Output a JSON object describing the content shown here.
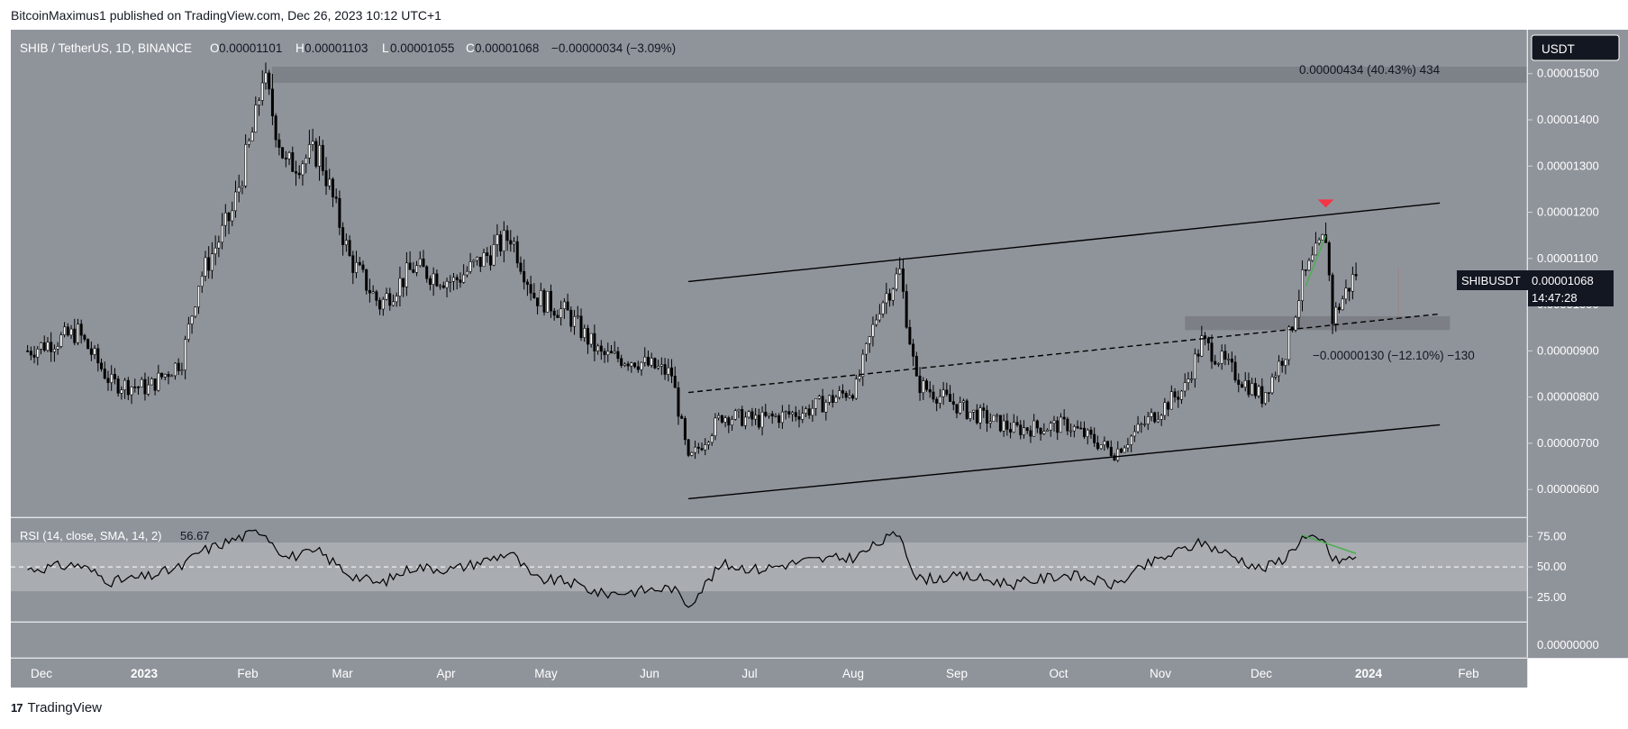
{
  "header": {
    "published": "BitcoinMaximus1 published on TradingView.com, Dec 26, 2023 10:12 UTC+1"
  },
  "footer": {
    "brand": "TradingView"
  },
  "colors": {
    "pane_bg": "#8f949b",
    "rsi_band": "#a9acb1",
    "price_line": "#000000",
    "accent_green": "#4caf50",
    "marker_red": "#f23645",
    "zone": "#6f7378"
  },
  "chart_data": {
    "type": "candlestick",
    "legend": {
      "symbol": "SHIB / TetherUS, 1D, BINANCE",
      "o_label": "O",
      "o": "0.00001101",
      "h_label": "H",
      "h": "0.00001103",
      "l_label": "L",
      "l": "0.00001055",
      "c_label": "C",
      "c": "0.00001068",
      "change": "−0.00000034 (−3.09%)"
    },
    "currency_button": "USDT",
    "price_axis": {
      "ticks": [
        {
          "v": 1.5e-05,
          "label": "0.00001500"
        },
        {
          "v": 1.4e-05,
          "label": "0.00001400"
        },
        {
          "v": 1.3e-05,
          "label": "0.00001300"
        },
        {
          "v": 1.2e-05,
          "label": "0.00001200"
        },
        {
          "v": 1.1e-05,
          "label": "0.00001100"
        },
        {
          "v": 1e-05,
          "label": "0.00001000"
        },
        {
          "v": 9e-06,
          "label": "0.00000900"
        },
        {
          "v": 8e-06,
          "label": "0.00000800"
        },
        {
          "v": 7e-06,
          "label": "0.00000700"
        },
        {
          "v": 6e-06,
          "label": "0.00000600"
        }
      ],
      "range": [
        5.4e-06,
        1.595e-05
      ]
    },
    "time_axis": [
      "Dec",
      "2023",
      "Feb",
      "Mar",
      "Apr",
      "May",
      "Jun",
      "Jul",
      "Aug",
      "Sep",
      "Oct",
      "Nov",
      "Dec",
      "2024",
      "Feb"
    ],
    "last_price": {
      "symbol": "SHIBUSDT",
      "price": "0.00001068",
      "countdown": "14:47:28"
    },
    "candles_close": [
      [
        "2022-11-25",
        9e-06
      ],
      [
        "2022-12-10",
        9.4e-06
      ],
      [
        "2022-12-20",
        8.3e-06
      ],
      [
        "2022-12-31",
        8.2e-06
      ],
      [
        "2023-01-10",
        8.8e-06
      ],
      [
        "2023-01-15",
        1.05e-05
      ],
      [
        "2023-01-25",
        1.2e-05
      ],
      [
        "2023-02-01",
        1.4e-05
      ],
      [
        "2023-02-03",
        1.5e-05
      ],
      [
        "2023-02-10",
        1.3e-05
      ],
      [
        "2023-02-20",
        1.33e-05
      ],
      [
        "2023-03-01",
        1.1e-05
      ],
      [
        "2023-03-10",
        1e-05
      ],
      [
        "2023-03-20",
        1.08e-05
      ],
      [
        "2023-04-01",
        1.05e-05
      ],
      [
        "2023-04-10",
        1.1e-05
      ],
      [
        "2023-04-18",
        1.15e-05
      ],
      [
        "2023-04-25",
        1.02e-05
      ],
      [
        "2023-05-05",
        9.8e-06
      ],
      [
        "2023-05-15",
        8.9e-06
      ],
      [
        "2023-05-25",
        8.8e-06
      ],
      [
        "2023-06-05",
        8.5e-06
      ],
      [
        "2023-06-10",
        6.6e-06
      ],
      [
        "2023-06-20",
        7.6e-06
      ],
      [
        "2023-07-01",
        7.5e-06
      ],
      [
        "2023-07-15",
        7.7e-06
      ],
      [
        "2023-07-30",
        8.2e-06
      ],
      [
        "2023-08-06",
        1e-05
      ],
      [
        "2023-08-12",
        1.07e-05
      ],
      [
        "2023-08-17",
        8.3e-06
      ],
      [
        "2023-09-01",
        7.7e-06
      ],
      [
        "2023-09-15",
        7.3e-06
      ],
      [
        "2023-10-01",
        7.4e-06
      ],
      [
        "2023-10-15",
        6.8e-06
      ],
      [
        "2023-10-25",
        7.5e-06
      ],
      [
        "2023-11-05",
        8.2e-06
      ],
      [
        "2023-11-10",
        9.2e-06
      ],
      [
        "2023-11-20",
        8.5e-06
      ],
      [
        "2023-11-28",
        8e-06
      ],
      [
        "2023-12-05",
        9e-06
      ],
      [
        "2023-12-10",
        1.05e-05
      ],
      [
        "2023-12-17",
        1.15e-05
      ],
      [
        "2023-12-19",
        9.7e-06
      ],
      [
        "2023-12-26",
        1.07e-05
      ]
    ],
    "annotations": {
      "upper_measure": "0.00000434 (40.43%) 434",
      "lower_measure": "−0.00000130 (−12.10%) −130",
      "resistance_zone": [
        1.48e-05,
        1.515e-05
      ],
      "support_zone": [
        9.45e-06,
        9.75e-06
      ],
      "channel_upper": [
        [
          "2023-06-10",
          1.05e-05
        ],
        [
          "2024-01-20",
          1.22e-05
        ]
      ],
      "channel_lower": [
        [
          "2023-06-10",
          5.8e-06
        ],
        [
          "2024-01-20",
          7.4e-06
        ]
      ],
      "channel_mid": [
        [
          "2023-06-10",
          8.1e-06
        ],
        [
          "2024-01-20",
          9.8e-06
        ]
      ]
    },
    "rsi": {
      "legend": "RSI (14, close, SMA, 14, 2)",
      "value": "56.67",
      "ticks": [
        {
          "v": 75,
          "label": "75.00"
        },
        {
          "v": 50,
          "label": "50.00"
        },
        {
          "v": 25,
          "label": "25.00"
        }
      ],
      "bottom_label": "0.00000000",
      "band": [
        30,
        70
      ],
      "series": [
        [
          "2022-11-25",
          48
        ],
        [
          "2022-12-10",
          52
        ],
        [
          "2022-12-20",
          38
        ],
        [
          "2022-12-31",
          42
        ],
        [
          "2023-01-10",
          50
        ],
        [
          "2023-01-15",
          62
        ],
        [
          "2023-01-25",
          72
        ],
        [
          "2023-02-03",
          80
        ],
        [
          "2023-02-10",
          58
        ],
        [
          "2023-02-20",
          62
        ],
        [
          "2023-03-01",
          44
        ],
        [
          "2023-03-10",
          36
        ],
        [
          "2023-03-20",
          50
        ],
        [
          "2023-04-01",
          48
        ],
        [
          "2023-04-10",
          55
        ],
        [
          "2023-04-18",
          62
        ],
        [
          "2023-04-25",
          40
        ],
        [
          "2023-05-05",
          38
        ],
        [
          "2023-05-15",
          28
        ],
        [
          "2023-05-25",
          30
        ],
        [
          "2023-06-05",
          33
        ],
        [
          "2023-06-10",
          19
        ],
        [
          "2023-06-20",
          52
        ],
        [
          "2023-07-01",
          48
        ],
        [
          "2023-07-15",
          55
        ],
        [
          "2023-07-30",
          58
        ],
        [
          "2023-08-06",
          70
        ],
        [
          "2023-08-12",
          78
        ],
        [
          "2023-08-17",
          40
        ],
        [
          "2023-09-01",
          42
        ],
        [
          "2023-09-15",
          36
        ],
        [
          "2023-10-01",
          44
        ],
        [
          "2023-10-15",
          35
        ],
        [
          "2023-10-25",
          52
        ],
        [
          "2023-11-05",
          65
        ],
        [
          "2023-11-10",
          70
        ],
        [
          "2023-11-20",
          58
        ],
        [
          "2023-11-28",
          48
        ],
        [
          "2023-12-05",
          58
        ],
        [
          "2023-12-10",
          74
        ],
        [
          "2023-12-17",
          70
        ],
        [
          "2023-12-19",
          55
        ],
        [
          "2023-12-26",
          57
        ]
      ]
    }
  }
}
